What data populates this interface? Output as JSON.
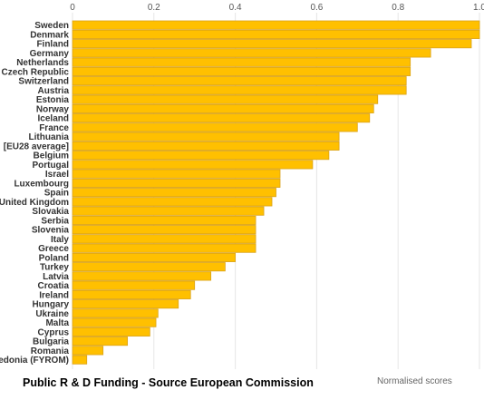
{
  "caption": "Public R & D Funding - Source European Commission",
  "units_note": "Normalised scores",
  "colors": {
    "bar_fill": "#FFC000",
    "bar_stroke": "#D9A21A",
    "grid": "#E6E6E6"
  },
  "chart_data": {
    "type": "bar",
    "orientation": "horizontal",
    "title": "",
    "xlabel": "Normalised scores",
    "ylabel": "",
    "xlim": [
      0,
      1
    ],
    "x_ticks": [
      "0",
      "0.2",
      "0.4",
      "0.6",
      "0.8",
      "1.0"
    ],
    "grid": true,
    "categories": [
      "Sweden",
      "Denmark",
      "Finland",
      "Germany",
      "Netherlands",
      "Czech Republic",
      "Switzerland",
      "Austria",
      "Estonia",
      "Norway",
      "Iceland",
      "France",
      "Lithuania",
      "[EU28 average]",
      "Belgium",
      "Portugal",
      "Israel",
      "Luxembourg",
      "Spain",
      "United Kingdom",
      "Slovakia",
      "Serbia",
      "Slovenia",
      "Italy",
      "Greece",
      "Poland",
      "Turkey",
      "Latvia",
      "Croatia",
      "Ireland",
      "Hungary",
      "Ukraine",
      "Malta",
      "Cyprus",
      "Bulgaria",
      "Romania",
      "Macedonia (FYROM)"
    ],
    "values": [
      1.0,
      1.0,
      0.98,
      0.88,
      0.83,
      0.83,
      0.82,
      0.82,
      0.75,
      0.74,
      0.73,
      0.7,
      0.655,
      0.655,
      0.63,
      0.59,
      0.51,
      0.51,
      0.5,
      0.49,
      0.47,
      0.45,
      0.45,
      0.45,
      0.45,
      0.4,
      0.375,
      0.34,
      0.3,
      0.29,
      0.26,
      0.21,
      0.205,
      0.19,
      0.135,
      0.075,
      0.035
    ]
  }
}
